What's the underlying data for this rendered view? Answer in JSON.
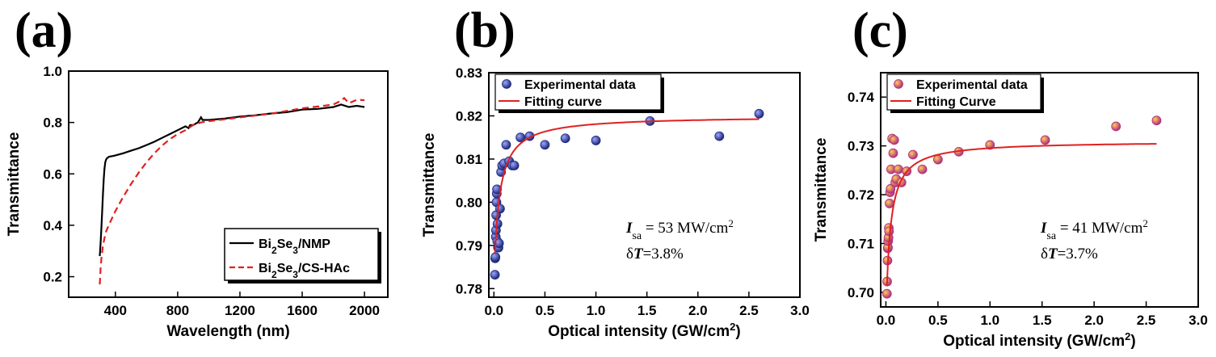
{
  "chart_data": [
    {
      "panel_label": "(a)",
      "type": "line",
      "xlabel": "Wavelength (nm)",
      "ylabel": "Transmittance",
      "xlim": [
        100,
        2150
      ],
      "ylim": [
        0.12,
        1.0
      ],
      "xticks": [
        400,
        800,
        1200,
        1600,
        2000
      ],
      "yticks": [
        0.2,
        0.4,
        0.6,
        0.8,
        1.0
      ],
      "legend_position": "bottom-right",
      "series": [
        {
          "name": "Bi2Se3/NMP",
          "name_main": "Bi",
          "name_sub1": "2",
          "name_mid": "Se",
          "name_sub2": "3",
          "name_tail": "/NMP",
          "color": "#000000",
          "dash": "solid",
          "x": [
            300,
            305,
            310,
            315,
            320,
            325,
            330,
            335,
            340,
            345,
            350,
            360,
            370,
            380,
            400,
            450,
            500,
            550,
            600,
            650,
            700,
            750,
            800,
            850,
            870,
            880,
            900,
            930,
            950,
            960,
            1000,
            1100,
            1200,
            1300,
            1400,
            1500,
            1600,
            1700,
            1800,
            1850,
            1900,
            1950,
            2000
          ],
          "y": [
            0.28,
            0.33,
            0.39,
            0.45,
            0.52,
            0.58,
            0.62,
            0.645,
            0.655,
            0.66,
            0.663,
            0.667,
            0.668,
            0.669,
            0.672,
            0.68,
            0.69,
            0.7,
            0.712,
            0.725,
            0.74,
            0.755,
            0.77,
            0.785,
            0.778,
            0.79,
            0.79,
            0.8,
            0.82,
            0.81,
            0.81,
            0.815,
            0.823,
            0.828,
            0.835,
            0.84,
            0.85,
            0.853,
            0.86,
            0.87,
            0.86,
            0.865,
            0.86
          ]
        },
        {
          "name": "Bi2Se3/CS-HAc",
          "name_main": "Bi",
          "name_sub1": "2",
          "name_mid": "Se",
          "name_sub2": "3",
          "name_tail": "/CS-HAc",
          "color": "#e02020",
          "dash": "dashed",
          "x": [
            300,
            305,
            310,
            320,
            330,
            340,
            350,
            380,
            400,
            450,
            500,
            550,
            600,
            650,
            700,
            750,
            800,
            850,
            900,
            950,
            1000,
            1100,
            1200,
            1300,
            1400,
            1500,
            1600,
            1700,
            1800,
            1850,
            1870,
            1900,
            1950,
            2000
          ],
          "y": [
            0.17,
            0.23,
            0.27,
            0.32,
            0.35,
            0.375,
            0.39,
            0.43,
            0.455,
            0.51,
            0.56,
            0.605,
            0.645,
            0.68,
            0.71,
            0.735,
            0.755,
            0.77,
            0.79,
            0.8,
            0.805,
            0.812,
            0.82,
            0.827,
            0.834,
            0.845,
            0.855,
            0.862,
            0.87,
            0.885,
            0.895,
            0.875,
            0.888,
            0.887
          ]
        }
      ]
    },
    {
      "panel_label": "(b)",
      "type": "scatter",
      "xlabel": "Optical intensity (GW/cm",
      "xlabel_sup": "2",
      "xlabel_tail": ")",
      "ylabel": "Transmittance",
      "xlim": [
        -0.05,
        3.0
      ],
      "ylim": [
        0.778,
        0.83
      ],
      "xticks": [
        0.0,
        0.5,
        1.0,
        1.5,
        2.0,
        2.5,
        3.0
      ],
      "yticks": [
        0.78,
        0.79,
        0.8,
        0.81,
        0.82,
        0.83
      ],
      "legend_position": "top-left",
      "legend": [
        "Experimental data",
        "Fitting curve"
      ],
      "marker_color": "#1f2a7a",
      "fit_color": "#e02020",
      "annotation_symbol": "I",
      "annotation_sub": "sa",
      "annotation_value": " = 53 MW/cm",
      "annotation_sup": "2",
      "annotation_delta": "δ",
      "annotation_T": "T",
      "annotation_delta_value": "=3.8%",
      "points": {
        "x": [
          0.01,
          0.012,
          0.015,
          0.018,
          0.02,
          0.022,
          0.025,
          0.028,
          0.03,
          0.032,
          0.035,
          0.04,
          0.045,
          0.05,
          0.06,
          0.07,
          0.08,
          0.1,
          0.12,
          0.15,
          0.18,
          0.2,
          0.26,
          0.35,
          0.5,
          0.7,
          1.0,
          1.53,
          2.21,
          2.6
        ],
        "y": [
          0.7832,
          0.787,
          0.7873,
          0.792,
          0.7935,
          0.797,
          0.8,
          0.802,
          0.803,
          0.791,
          0.795,
          0.7895,
          0.7895,
          0.7905,
          0.7985,
          0.807,
          0.8085,
          0.809,
          0.8133,
          0.8095,
          0.8085,
          0.8085,
          0.815,
          0.8153,
          0.8133,
          0.8148,
          0.8143,
          0.8188,
          0.8153,
          0.8205
        ]
      },
      "fit": {
        "delta_T": 0.038,
        "I_sat": 0.053,
        "T_max": 0.82
      }
    },
    {
      "panel_label": "(c)",
      "type": "scatter",
      "xlabel": "Optical intensity (GW/cm",
      "xlabel_sup": "2",
      "xlabel_tail": ")",
      "ylabel": "Transmittance",
      "xlim": [
        -0.05,
        3.0
      ],
      "ylim": [
        0.697,
        0.745
      ],
      "xticks": [
        0.0,
        0.5,
        1.0,
        1.5,
        2.0,
        2.5,
        3.0
      ],
      "yticks": [
        0.7,
        0.71,
        0.72,
        0.73,
        0.74
      ],
      "legend_position": "top-left",
      "legend": [
        "Experimental data",
        "Fitting Curve"
      ],
      "marker_color": "#b03080",
      "fit_color": "#e02020",
      "annotation_symbol": "I",
      "annotation_sub": "sa",
      "annotation_value": " = 41 MW/cm",
      "annotation_sup": "2",
      "annotation_delta": "δ",
      "annotation_T": "T",
      "annotation_delta_value": "=3.7%",
      "points": {
        "x": [
          0.01,
          0.012,
          0.015,
          0.018,
          0.02,
          0.022,
          0.025,
          0.028,
          0.03,
          0.035,
          0.04,
          0.045,
          0.05,
          0.06,
          0.07,
          0.08,
          0.09,
          0.1,
          0.12,
          0.15,
          0.2,
          0.26,
          0.35,
          0.5,
          0.7,
          1.0,
          1.53,
          2.21,
          2.6
        ],
        "y": [
          0.6997,
          0.7022,
          0.7065,
          0.709,
          0.7092,
          0.7105,
          0.7112,
          0.7132,
          0.7125,
          0.7182,
          0.7205,
          0.7212,
          0.7252,
          0.7315,
          0.7285,
          0.7312,
          0.7225,
          0.7232,
          0.7252,
          0.7225,
          0.7248,
          0.7282,
          0.7252,
          0.7272,
          0.7288,
          0.7302,
          0.7312,
          0.734,
          0.7352
        ]
      },
      "fit": {
        "delta_T": 0.037,
        "I_sat": 0.041,
        "T_max": 0.731
      }
    }
  ]
}
